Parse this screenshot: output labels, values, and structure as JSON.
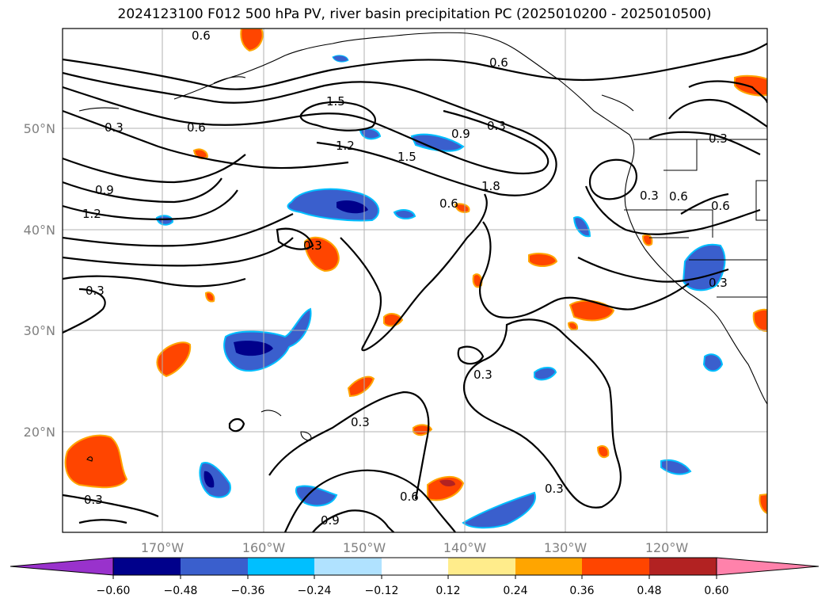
{
  "title": "2024123100 F012 500 hPa PV, river basin precipitation PC (2025010200 - 2025010500)",
  "map": {
    "lon_labels": [
      "170°W",
      "160°W",
      "150°W",
      "140°W",
      "130°W",
      "120°W"
    ],
    "lat_labels": [
      "50°N",
      "40°N",
      "30°N",
      "20°N"
    ]
  },
  "contour_labels": [
    "0.6",
    "0.6",
    "1.5",
    "0.3",
    "0.6",
    "1.2",
    "0.9",
    "0.3",
    "1.5",
    "1.8",
    "0.9",
    "1.2",
    "0.6",
    "0.3",
    "0.3",
    "0.6",
    "0.6",
    "0.3",
    "0.3",
    "0.3",
    "0.3",
    "0.3",
    "0.6",
    "0.3",
    "0.9",
    "0.3"
  ],
  "colorbar": {
    "colors": [
      "#9932cc",
      "#00008b",
      "#3a5fcd",
      "#00bfff",
      "#b0e2ff",
      "#ffffff",
      "#ffec8b",
      "#ffa500",
      "#ff4500",
      "#b22222",
      "#ff82ab"
    ],
    "tick_labels": [
      "−0.60",
      "−0.48",
      "−0.36",
      "−0.24",
      "−0.12",
      "0.12",
      "0.24",
      "0.36",
      "0.48",
      "0.60"
    ]
  }
}
